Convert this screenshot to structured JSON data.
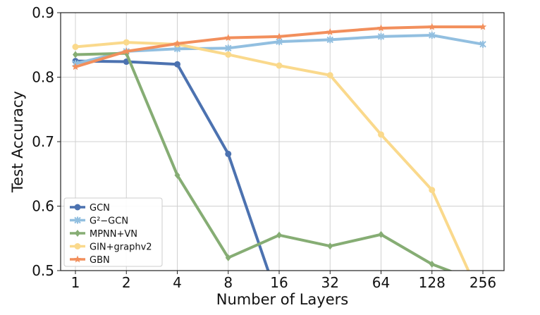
{
  "chart_data": {
    "type": "line",
    "title": "",
    "xlabel": "Number of Layers",
    "ylabel": "Test Accuracy",
    "categories": [
      "1",
      "2",
      "4",
      "8",
      "16",
      "32",
      "64",
      "128",
      "256"
    ],
    "x_scale": "log2",
    "ylim": [
      0.5,
      0.9
    ],
    "yticks": [
      "0.5",
      "0.6",
      "0.7",
      "0.8",
      "0.9"
    ],
    "grid": true,
    "legend_position": "lower-left",
    "series": [
      {
        "name": "GCN",
        "color": "#4c72b0",
        "marker": "circle",
        "values": [
          0.825,
          0.824,
          0.82,
          0.681,
          0.45,
          null,
          null,
          null,
          null
        ]
      },
      {
        "name": "G²−GCN",
        "color": "#92bfe0",
        "marker": "x",
        "values": [
          0.821,
          0.84,
          0.844,
          0.845,
          0.855,
          0.858,
          0.863,
          0.865,
          0.851
        ]
      },
      {
        "name": "MPNN+VN",
        "color": "#86ad74",
        "marker": "diamond",
        "values": [
          0.835,
          0.837,
          0.648,
          0.52,
          0.555,
          0.538,
          0.556,
          0.51,
          0.48
        ]
      },
      {
        "name": "GIN+graphv2",
        "color": "#fad98c",
        "marker": "circle",
        "values": [
          0.847,
          0.854,
          0.851,
          0.835,
          0.818,
          0.803,
          0.711,
          0.625,
          0.45
        ]
      },
      {
        "name": "GBN",
        "color": "#f28f5c",
        "marker": "star",
        "values": [
          0.816,
          0.84,
          0.852,
          0.861,
          0.863,
          0.87,
          0.876,
          0.878,
          0.878
        ]
      }
    ]
  }
}
